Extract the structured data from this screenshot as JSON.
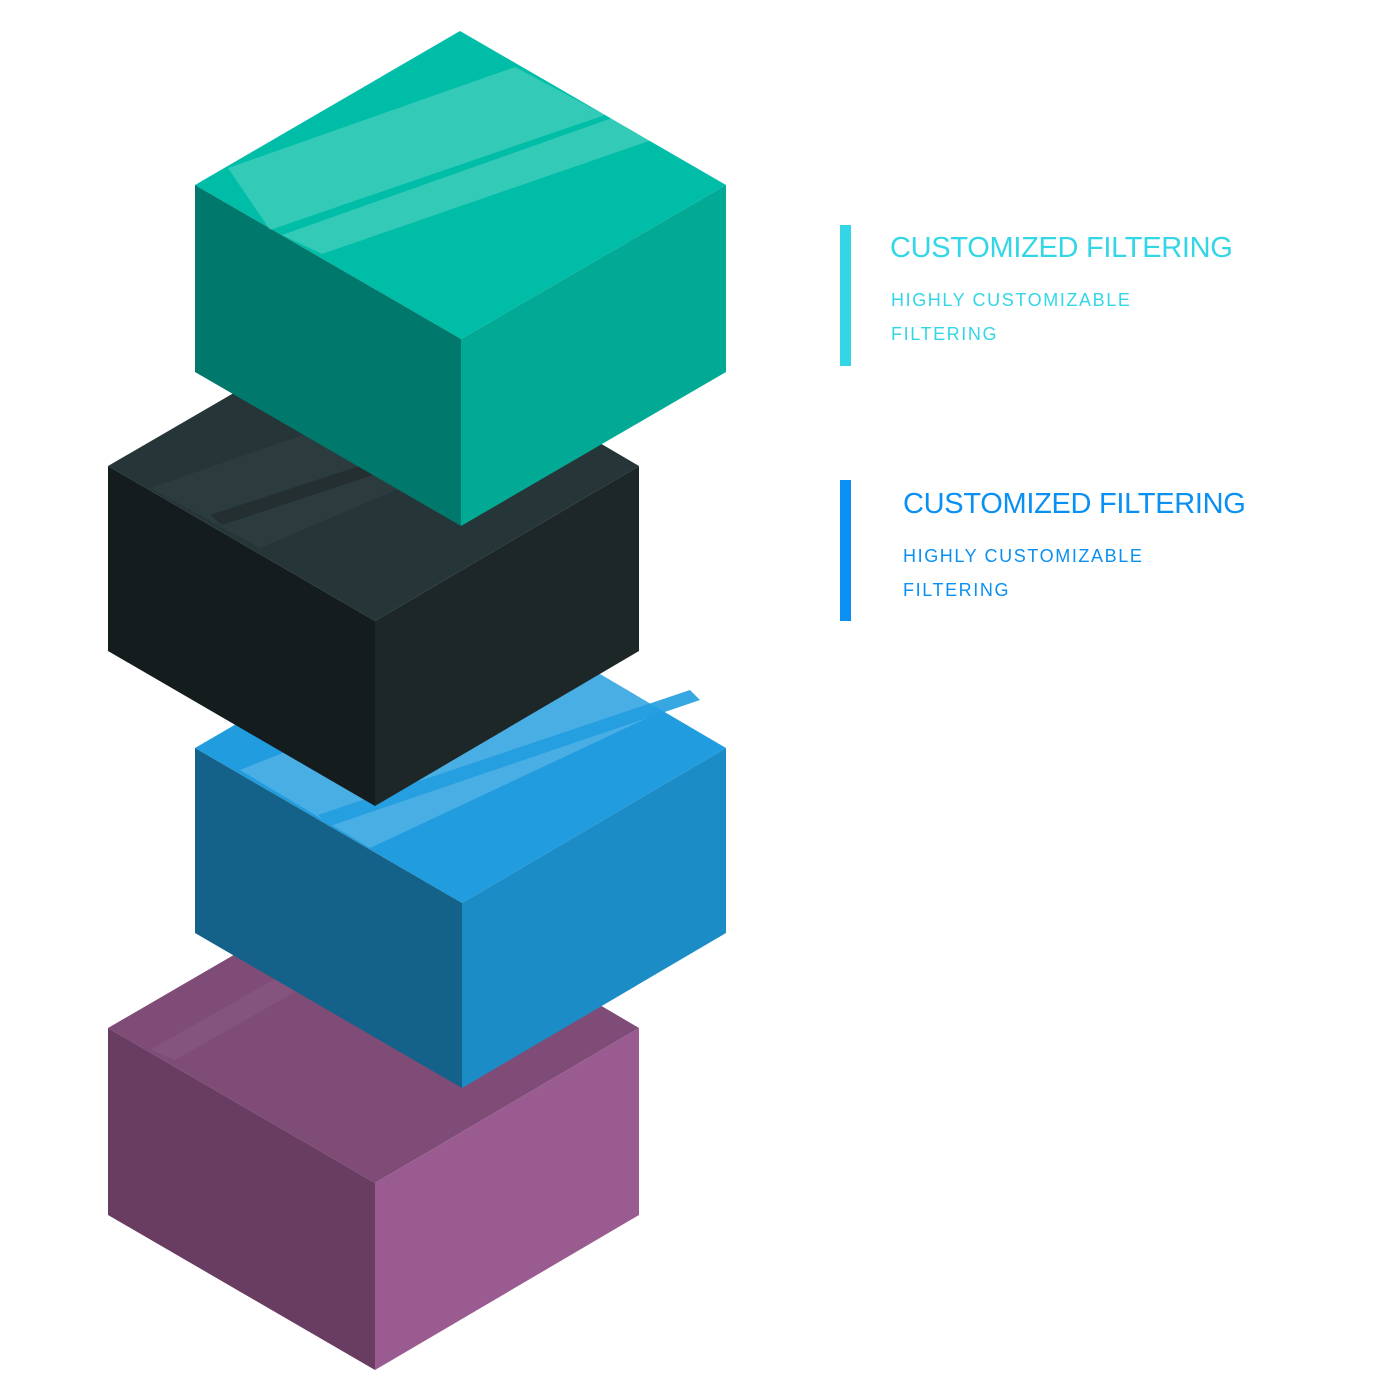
{
  "colors": {
    "teal_top": "#00bda7",
    "teal_left": "#00786c",
    "teal_right": "#02aa96",
    "black_top": "#263638",
    "black_left": "#141c1d",
    "black_right": "#1d2728",
    "blue_top": "#219ddf",
    "blue_left": "#146289",
    "blue_right": "#1c8cc7",
    "purple_top": "#7f4b77",
    "purple_left": "#693d62",
    "purple_right": "#9a5c90",
    "accent_cyan": "#33d6e6",
    "accent_blue": "#0a8ff2"
  },
  "features": [
    {
      "title": "CUSTOMIZED FILTERING",
      "description": "HIGHLY CUSTOMIZABLE FILTERING",
      "color": "#33d6e6"
    },
    {
      "title": "CUSTOMIZED FILTERING",
      "description": "HIGHLY CUSTOMIZABLE FILTERING",
      "color": "#0a8ff2"
    }
  ]
}
